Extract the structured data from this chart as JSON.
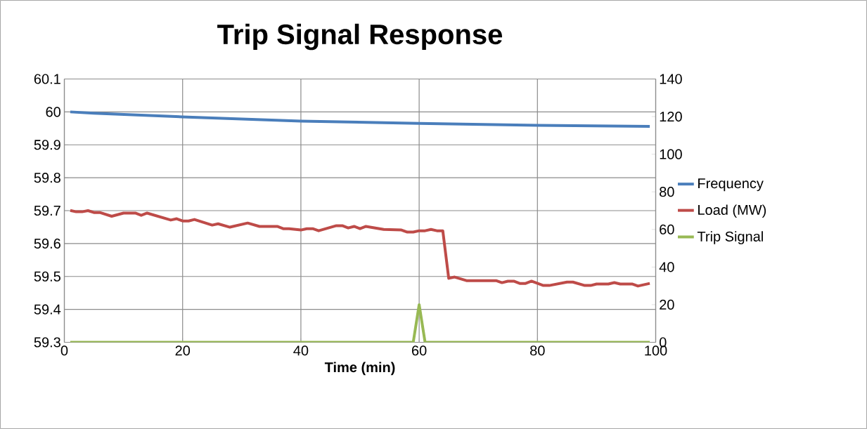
{
  "chart_data": {
    "type": "line",
    "title": "Trip Signal Response",
    "xlabel": "Time (min)",
    "xlim": [
      0,
      100
    ],
    "xticks": [
      0,
      20,
      40,
      60,
      80,
      100
    ],
    "ylim": [
      59.3,
      60.1
    ],
    "yticks": [
      59.3,
      59.4,
      59.5,
      59.6,
      59.7,
      59.8,
      59.9,
      60,
      60.1
    ],
    "y2lim": [
      0,
      140
    ],
    "y2ticks": [
      0,
      20,
      40,
      60,
      80,
      100,
      120,
      140
    ],
    "grid": true,
    "legend": "right",
    "series": [
      {
        "name": "Frequency",
        "color": "#4a7ebb",
        "x": [
          1,
          5,
          20,
          40,
          60,
          80,
          99
        ],
        "values": [
          60.0,
          59.996,
          59.985,
          59.972,
          59.965,
          59.959,
          59.956
        ]
      },
      {
        "name": "Load (MW)",
        "color": "#be4b48",
        "axis": "y2",
        "x": [
          1,
          2,
          3,
          4,
          5,
          6,
          8,
          10,
          12,
          13,
          14,
          18,
          19,
          20,
          21,
          22,
          25,
          26,
          28,
          31,
          33,
          36,
          37,
          38,
          40,
          41,
          42,
          43,
          46,
          47,
          48,
          49,
          50,
          51,
          54,
          57,
          58,
          59,
          60,
          61,
          62,
          63,
          64,
          65,
          66,
          68,
          73,
          74,
          75,
          76,
          77,
          78,
          79,
          81,
          82,
          85,
          86,
          88,
          89,
          90,
          92,
          93,
          94,
          96,
          97,
          99
        ],
        "values": [
          70.1,
          69.4,
          69.4,
          70,
          69,
          69,
          67,
          68.7,
          68.7,
          67.5,
          68.7,
          65,
          65.7,
          64.5,
          64.5,
          65.3,
          62.3,
          63,
          61.2,
          63.4,
          61.6,
          61.6,
          60.4,
          60.4,
          59.7,
          60.4,
          60.4,
          59.3,
          62,
          62,
          60.8,
          61.6,
          60.4,
          61.6,
          60,
          59.7,
          58.6,
          58.6,
          59.3,
          59.3,
          60,
          59.3,
          59.3,
          34,
          34.7,
          32.8,
          32.8,
          31.7,
          32.5,
          32.5,
          31.3,
          31.3,
          32.5,
          30.2,
          30.2,
          32,
          32,
          30.2,
          30.2,
          31,
          31,
          31.7,
          31,
          31,
          29.9,
          31.3
        ]
      },
      {
        "name": "Trip Signal",
        "color": "#98b954",
        "axis": "y2",
        "x": [
          1,
          59,
          60,
          61,
          99
        ],
        "values": [
          0,
          0,
          20,
          0,
          0
        ]
      }
    ]
  }
}
